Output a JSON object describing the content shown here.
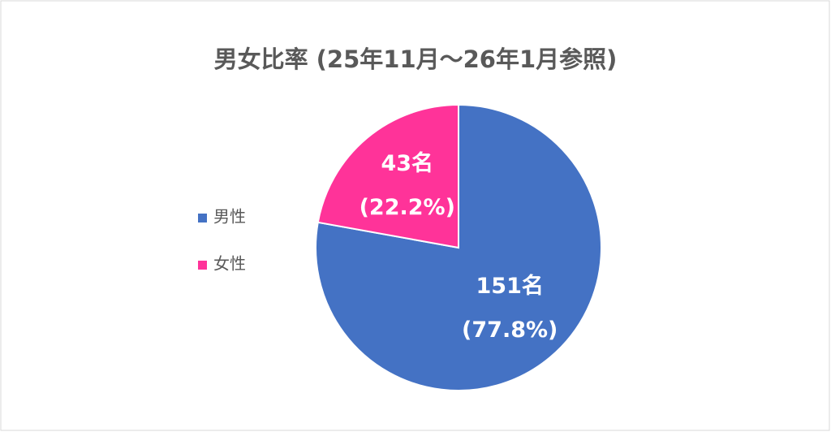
{
  "chart_data": {
    "type": "pie",
    "title": "男女比率 (25年11月～26年1月参照)",
    "categories": [
      "男性",
      "女性"
    ],
    "values": [
      151,
      43
    ],
    "value_labels": [
      "151名",
      "43名"
    ],
    "percent_labels": [
      "(77.8%)",
      "(22.2%)"
    ],
    "colors": [
      "#4472c4",
      "#ff3399"
    ],
    "legend": "left"
  }
}
